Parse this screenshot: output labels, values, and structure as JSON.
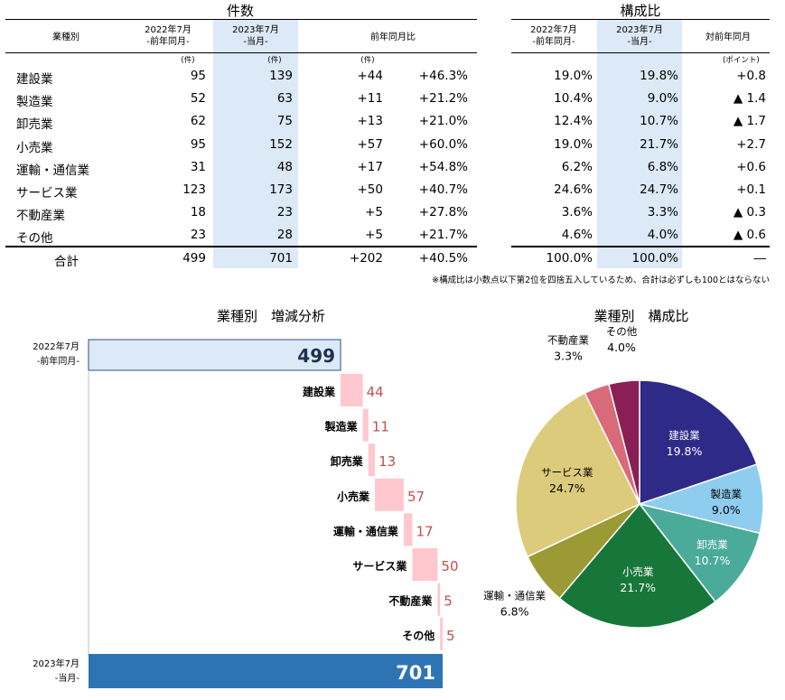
{
  "table_left": {
    "title": "件数",
    "col_industry": "業種別",
    "col_prev_line1": "2022年7月",
    "col_prev_line2": "-前年同月-",
    "col_curr_line1": "2023年7月",
    "col_curr_line2": "-当月-",
    "col_yoy": "前年同月比",
    "unit_prev": "(件)",
    "unit_curr": "(件)",
    "unit_yoy": "(件)"
  },
  "table_right": {
    "title": "構成比",
    "col_prev_line1": "2022年7月",
    "col_prev_line2": "-前年同月-",
    "col_curr_line1": "2023年7月",
    "col_curr_line2": "-当月-",
    "col_diff": "対前年同月",
    "unit_diff": "(ポイント)"
  },
  "rows": [
    {
      "name": "建設業",
      "prev": "95",
      "curr": "139",
      "diff": "+44",
      "rate": "+46.3%",
      "share_prev": "19.0%",
      "share_curr": "19.8%",
      "point": "+0.8"
    },
    {
      "name": "製造業",
      "prev": "52",
      "curr": "63",
      "diff": "+11",
      "rate": "+21.2%",
      "share_prev": "10.4%",
      "share_curr": "9.0%",
      "point": "▲ 1.4"
    },
    {
      "name": "卸売業",
      "prev": "62",
      "curr": "75",
      "diff": "+13",
      "rate": "+21.0%",
      "share_prev": "12.4%",
      "share_curr": "10.7%",
      "point": "▲ 1.7"
    },
    {
      "name": "小売業",
      "prev": "95",
      "curr": "152",
      "diff": "+57",
      "rate": "+60.0%",
      "share_prev": "19.0%",
      "share_curr": "21.7%",
      "point": "+2.7"
    },
    {
      "name": "運輸・通信業",
      "prev": "31",
      "curr": "48",
      "diff": "+17",
      "rate": "+54.8%",
      "share_prev": "6.2%",
      "share_curr": "6.8%",
      "point": "+0.6"
    },
    {
      "name": "サービス業",
      "prev": "123",
      "curr": "173",
      "diff": "+50",
      "rate": "+40.7%",
      "share_prev": "24.6%",
      "share_curr": "24.7%",
      "point": "+0.1"
    },
    {
      "name": "不動産業",
      "prev": "18",
      "curr": "23",
      "diff": "+5",
      "rate": "+27.8%",
      "share_prev": "3.6%",
      "share_curr": "3.3%",
      "point": "▲ 0.3"
    },
    {
      "name": "その他",
      "prev": "23",
      "curr": "28",
      "diff": "+5",
      "rate": "+21.7%",
      "share_prev": "4.6%",
      "share_curr": "4.0%",
      "point": "▲ 0.6"
    }
  ],
  "total": {
    "name": "合計",
    "prev": "499",
    "curr": "701",
    "diff": "+202",
    "rate": "+40.5%",
    "share_prev": "100.0%",
    "share_curr": "100.0%",
    "point": "―"
  },
  "note": "※構成比は小数点以下第2位を四捨五入しているため、合計は必ずしも100とはならない",
  "chart_data": [
    {
      "type": "bar",
      "subtype": "waterfall",
      "title": "業種別　増減分析",
      "start": {
        "label_line1": "2022年7月",
        "label_line2": "-前年同月-",
        "value": 499
      },
      "end": {
        "label_line1": "2023年7月",
        "label_line2": "-当月-",
        "value": 701
      },
      "categories": [
        "建設業",
        "製造業",
        "卸売業",
        "小売業",
        "運輸・通信業",
        "サービス業",
        "不動産業",
        "その他"
      ],
      "values": [
        44,
        11,
        13,
        57,
        17,
        50,
        5,
        5
      ],
      "colors": {
        "start": "#dce9f6",
        "end": "#2e74b5",
        "step": "#ffc7ce",
        "step_label": "#c0504d"
      }
    },
    {
      "type": "pie",
      "title": "業種別　構成比",
      "categories": [
        "建設業",
        "製造業",
        "卸売業",
        "小売業",
        "運輸・通信業",
        "サービス業",
        "不動産業",
        "その他"
      ],
      "values": [
        19.8,
        9.0,
        10.7,
        21.7,
        6.8,
        24.7,
        3.3,
        4.0
      ],
      "value_labels": [
        "19.8%",
        "9.0%",
        "10.7%",
        "21.7%",
        "6.8%",
        "24.7%",
        "3.3%",
        "4.0%"
      ],
      "colors": [
        "#2e2a87",
        "#8ecdee",
        "#4aab9a",
        "#17773a",
        "#9c9a34",
        "#dccb7a",
        "#d96a7a",
        "#8a1f55"
      ]
    }
  ]
}
